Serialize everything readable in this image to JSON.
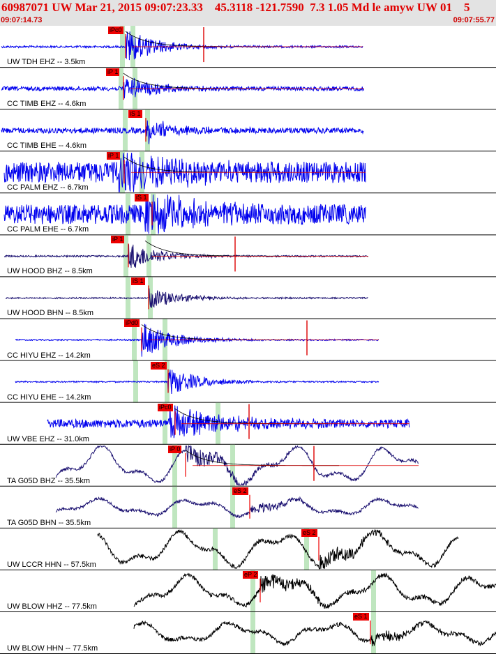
{
  "header": {
    "title": "60987071 UW Mar 21, 2015 09:07:23.33    45.3118 -121.7590  7.3 1.05 Md le amyw UW 01    5",
    "time_start": "09:07:14.73",
    "time_end": "09:07:55.77"
  },
  "colors": {
    "header_bg": "#e3e3e3",
    "title": "#e00000",
    "pick_window": "#bfe6bf",
    "pick_line": "#ee0000",
    "trace_blue": "#0000ee",
    "trace_navy": "#1a1070",
    "trace_black": "#000000",
    "model_curve": "#000000",
    "synthetic_red": "#dd0000"
  },
  "panels": [
    {
      "label": "UW TDH EHZ -- 3.5km",
      "pick": "iPc0",
      "trace_color": "blue"
    },
    {
      "label": "CC TIMB EHZ -- 4.6km",
      "pick": "iP 1",
      "trace_color": "blue"
    },
    {
      "label": "CC TIMB EHE -- 4.6km",
      "pick": "iS 1",
      "trace_color": "blue"
    },
    {
      "label": "CC PALM EHZ -- 6.7km",
      "pick": "iP 1",
      "trace_color": "blue"
    },
    {
      "label": "CC PALM EHE -- 6.7km",
      "pick": "iS 1",
      "trace_color": "blue"
    },
    {
      "label": "UW HOOD BHZ -- 8.5km",
      "pick": "iP 1",
      "trace_color": "navy"
    },
    {
      "label": "UW HOOD BHN -- 8.5km",
      "pick": "iS 1",
      "trace_color": "navy"
    },
    {
      "label": "CC HIYU EHZ -- 14.2km",
      "pick": "iPd0",
      "trace_color": "blue"
    },
    {
      "label": "CC HIYU EHE -- 14.2km",
      "pick": "eS 2",
      "trace_color": "blue"
    },
    {
      "label": "UW VBE EHZ -- 31.0km",
      "pick": "iPc0",
      "trace_color": "blue"
    },
    {
      "label": "TA G05D BHZ -- 35.5km",
      "pick": "iP 0",
      "trace_color": "navy"
    },
    {
      "label": "TA G05D BHN -- 35.5km",
      "pick": "eS 2",
      "trace_color": "navy"
    },
    {
      "label": "UW LCCR HHN -- 57.5km",
      "pick": "eS 2",
      "trace_color": "black"
    },
    {
      "label": "UW BLOW HHZ -- 77.5km",
      "pick": "eP 2",
      "trace_color": "black"
    },
    {
      "label": "UW BLOW HHN -- 77.5km",
      "pick": "eS 1",
      "trace_color": "black"
    }
  ]
}
